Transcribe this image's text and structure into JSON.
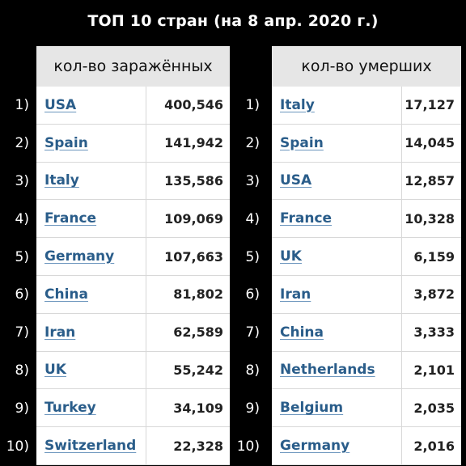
{
  "title": "ТОП 10 стран (на 8 апр. 2020 г.)",
  "left": {
    "header": "кол-во заражённых",
    "rows": [
      {
        "rank": "1)",
        "country": "USA",
        "value": "400,546"
      },
      {
        "rank": "2)",
        "country": "Spain",
        "value": "141,942"
      },
      {
        "rank": "3)",
        "country": "Italy",
        "value": "135,586"
      },
      {
        "rank": "4)",
        "country": "France",
        "value": "109,069"
      },
      {
        "rank": "5)",
        "country": "Germany",
        "value": "107,663"
      },
      {
        "rank": "6)",
        "country": "China",
        "value": "81,802"
      },
      {
        "rank": "7)",
        "country": "Iran",
        "value": "62,589"
      },
      {
        "rank": "8)",
        "country": "UK",
        "value": "55,242"
      },
      {
        "rank": "9)",
        "country": "Turkey",
        "value": "34,109"
      },
      {
        "rank": "10)",
        "country": "Switzerland",
        "value": "22,328"
      }
    ]
  },
  "right": {
    "header": "кол-во умерших",
    "rows": [
      {
        "rank": "1)",
        "country": "Italy",
        "value": "17,127"
      },
      {
        "rank": "2)",
        "country": "Spain",
        "value": "14,045"
      },
      {
        "rank": "3)",
        "country": "USA",
        "value": "12,857"
      },
      {
        "rank": "4)",
        "country": "France",
        "value": "10,328"
      },
      {
        "rank": "5)",
        "country": "UK",
        "value": "6,159"
      },
      {
        "rank": "6)",
        "country": "Iran",
        "value": "3,872"
      },
      {
        "rank": "7)",
        "country": "China",
        "value": "3,333"
      },
      {
        "rank": "8)",
        "country": "Netherlands",
        "value": "2,101"
      },
      {
        "rank": "9)",
        "country": "Belgium",
        "value": "2,035"
      },
      {
        "rank": "10)",
        "country": "Germany",
        "value": "2,016"
      }
    ]
  },
  "colors": {
    "background": "#000000",
    "header_bg": "#e6e6e6",
    "link": "#2a5d8a",
    "cell_bg": "#ffffff"
  }
}
